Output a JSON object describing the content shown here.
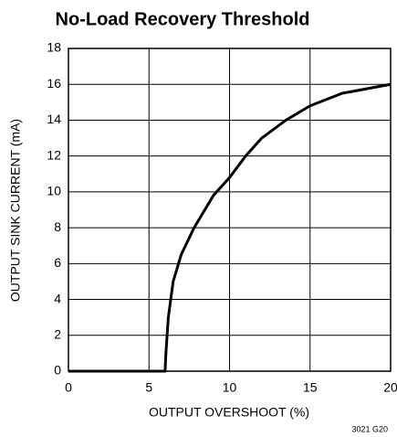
{
  "chart_data": {
    "type": "line",
    "title": "No-Load Recovery Threshold",
    "x_label": "OUTPUT OVERSHOOT (%)",
    "y_label": "OUTPUT SINK CURRENT (mA)",
    "annotation": "3021 G20",
    "x": [
      0,
      6,
      6.05,
      6.2,
      6.5,
      7,
      7.8,
      9,
      10,
      11,
      12,
      13.5,
      15,
      17,
      20
    ],
    "series": [
      {
        "name": "Sink current",
        "color": "#000000",
        "values": [
          0,
          0,
          1,
          3,
          5,
          6.5,
          8,
          9.8,
          10.8,
          12,
          13,
          14,
          14.8,
          15.5,
          16
        ]
      }
    ],
    "xlim": [
      0,
      20
    ],
    "xticks": [
      0,
      5,
      10,
      15,
      20
    ],
    "ylim": [
      0,
      18
    ],
    "yticks": [
      0,
      2,
      4,
      6,
      8,
      10,
      12,
      14,
      16,
      18
    ],
    "grid": true
  }
}
